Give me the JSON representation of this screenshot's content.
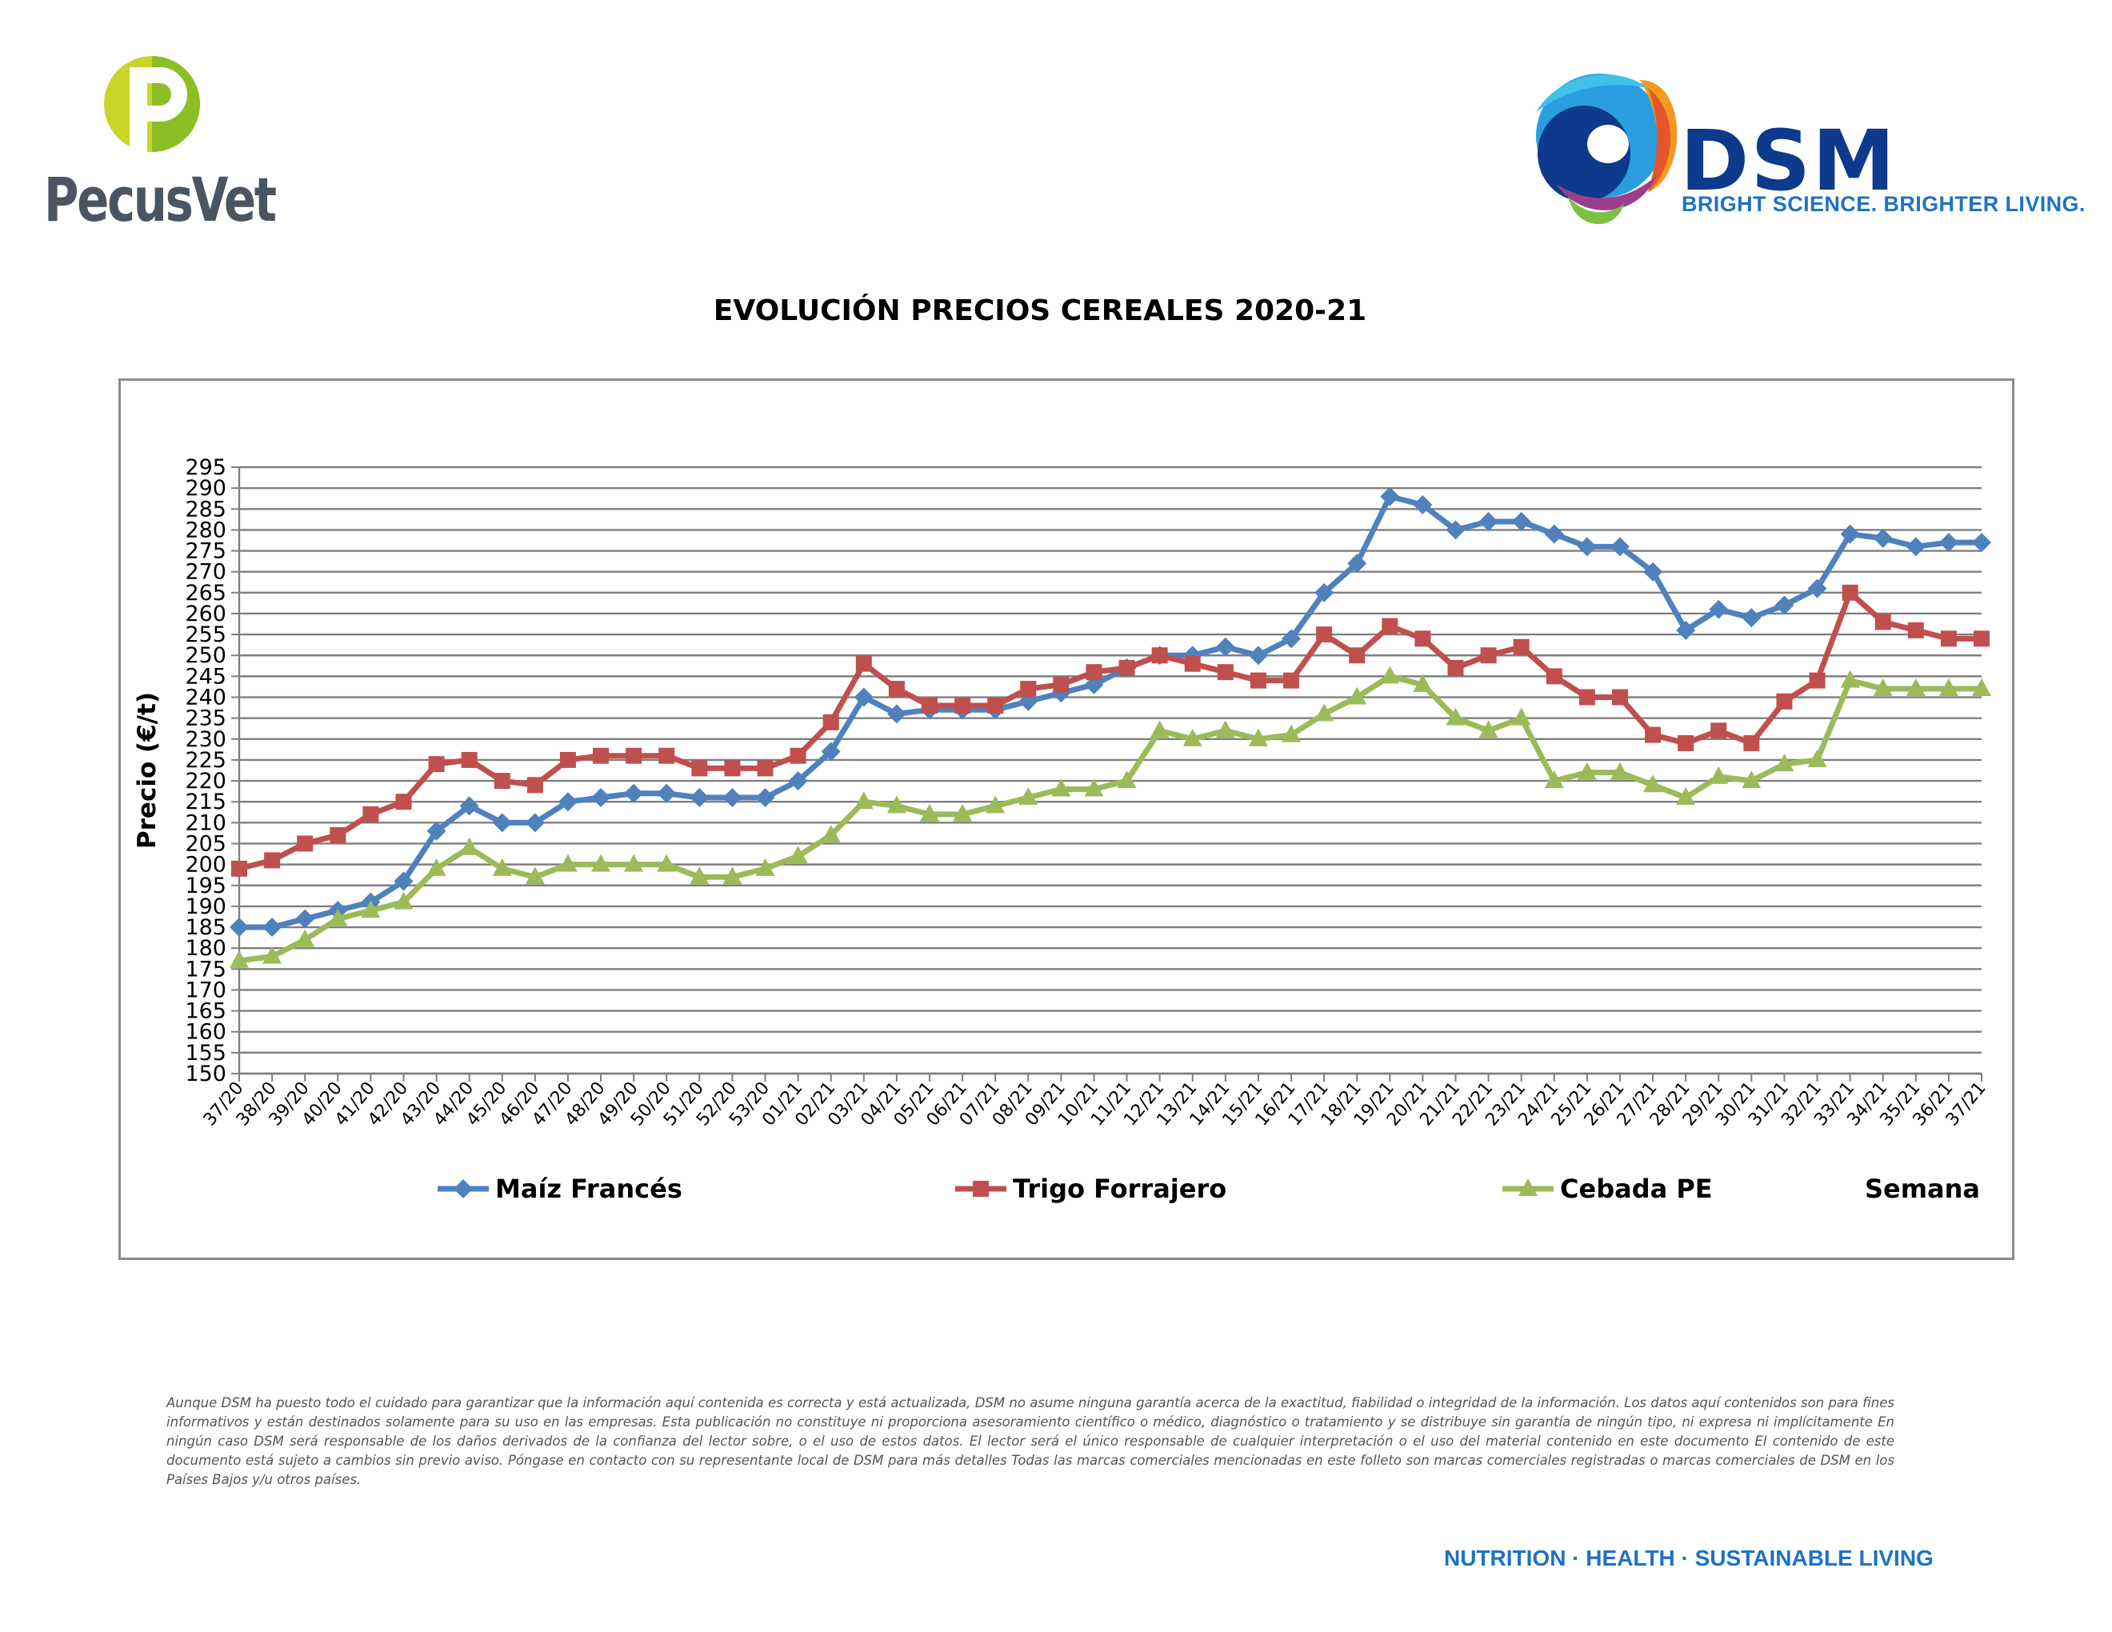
{
  "header": {
    "left_logo_text": "PecusVet",
    "right_logo_text": "DSM",
    "right_logo_tagline": "BRIGHT SCIENCE. BRIGHTER LIVING."
  },
  "colors": {
    "maiz": "#4f81bd",
    "trigo": "#c0504d",
    "cebada": "#9bbb59",
    "dsm_blue": "#0d3a8c",
    "footer_blue": "#1e72c2"
  },
  "chart_data": {
    "type": "line",
    "title": "EVOLUCIÓN PRECIOS CEREALES 2020-21",
    "ylabel": "Precio (€/t)",
    "xlabel": "Semana",
    "ylim": [
      150,
      295
    ],
    "ytick_step": 5,
    "grid": true,
    "legend_position": "bottom",
    "categories": [
      "37/20",
      "38/20",
      "39/20",
      "40/20",
      "41/20",
      "42/20",
      "43/20",
      "44/20",
      "45/20",
      "46/20",
      "47/20",
      "48/20",
      "49/20",
      "50/20",
      "51/20",
      "52/20",
      "53/20",
      "01/21",
      "02/21",
      "03/21",
      "04/21",
      "05/21",
      "06/21",
      "07/21",
      "08/21",
      "09/21",
      "10/21",
      "11/21",
      "12/21",
      "13/21",
      "14/21",
      "15/21",
      "16/21",
      "17/21",
      "18/21",
      "19/21",
      "20/21",
      "21/21",
      "22/21",
      "23/21",
      "24/21",
      "25/21",
      "26/21",
      "27/21",
      "28/21",
      "29/21",
      "30/21",
      "31/21",
      "32/21",
      "33/21",
      "34/21",
      "35/21",
      "36/21",
      "37/21"
    ],
    "series": [
      {
        "name": "Maíz Francés",
        "marker": "diamond",
        "values": [
          185,
          185,
          187,
          189,
          191,
          196,
          208,
          214,
          210,
          210,
          215,
          216,
          217,
          217,
          216,
          216,
          216,
          220,
          227,
          240,
          236,
          237,
          237,
          237,
          239,
          241,
          243,
          247,
          250,
          250,
          252,
          250,
          254,
          265,
          272,
          288,
          286,
          280,
          282,
          282,
          279,
          276,
          276,
          270,
          256,
          261,
          259,
          262,
          266,
          279,
          278,
          276,
          277,
          277
        ]
      },
      {
        "name": "Trigo Forrajero",
        "marker": "square",
        "values": [
          199,
          201,
          205,
          207,
          212,
          215,
          224,
          225,
          220,
          219,
          225,
          226,
          226,
          226,
          223,
          223,
          223,
          226,
          234,
          248,
          242,
          238,
          238,
          238,
          242,
          243,
          246,
          247,
          250,
          248,
          246,
          244,
          244,
          255,
          250,
          257,
          254,
          247,
          250,
          252,
          245,
          240,
          240,
          231,
          229,
          232,
          229,
          239,
          244,
          265,
          258,
          256,
          254,
          254
        ]
      },
      {
        "name": "Cebada PE",
        "marker": "triangle",
        "values": [
          177,
          178,
          182,
          187,
          189,
          191,
          199,
          204,
          199,
          197,
          200,
          200,
          200,
          200,
          197,
          197,
          199,
          202,
          207,
          215,
          214,
          212,
          212,
          214,
          216,
          218,
          218,
          220,
          232,
          230,
          232,
          230,
          231,
          236,
          240,
          245,
          243,
          235,
          232,
          235,
          220,
          222,
          222,
          219,
          216,
          221,
          220,
          224,
          225,
          244,
          242,
          242,
          242,
          242
        ]
      }
    ]
  },
  "disclaimer": "Aunque DSM ha puesto todo el cuidado para garantizar que la información aquí contenida es correcta y está actualizada, DSM no asume ninguna garantía acerca de la exactitud, fiabilidad o integridad de la información. Los datos aquí contenidos son para fines informativos y están destinados solamente para su uso en las empresas. Esta publicación no constituye ni proporciona asesoramiento científico o médico, diagnóstico o tratamiento y se distribuye sin garantía de ningún tipo, ni expresa ni implícitamente En ningún caso DSM será responsable de los daños derivados de la confianza del lector sobre, o el uso de estos datos. El lector será el único responsable de cualquier interpretación o el uso del material contenido en este documento El contenido de este documento está sujeto a cambios sin previo aviso. Póngase en contacto con su representante local de DSM para más detalles Todas las marcas comerciales mencionadas en este folleto son marcas comerciales registradas o marcas comerciales de DSM en los Países Bajos y/u otros países.",
  "footer": {
    "slogan": "NUTRITION · HEALTH · SUSTAINABLE LIVING"
  }
}
